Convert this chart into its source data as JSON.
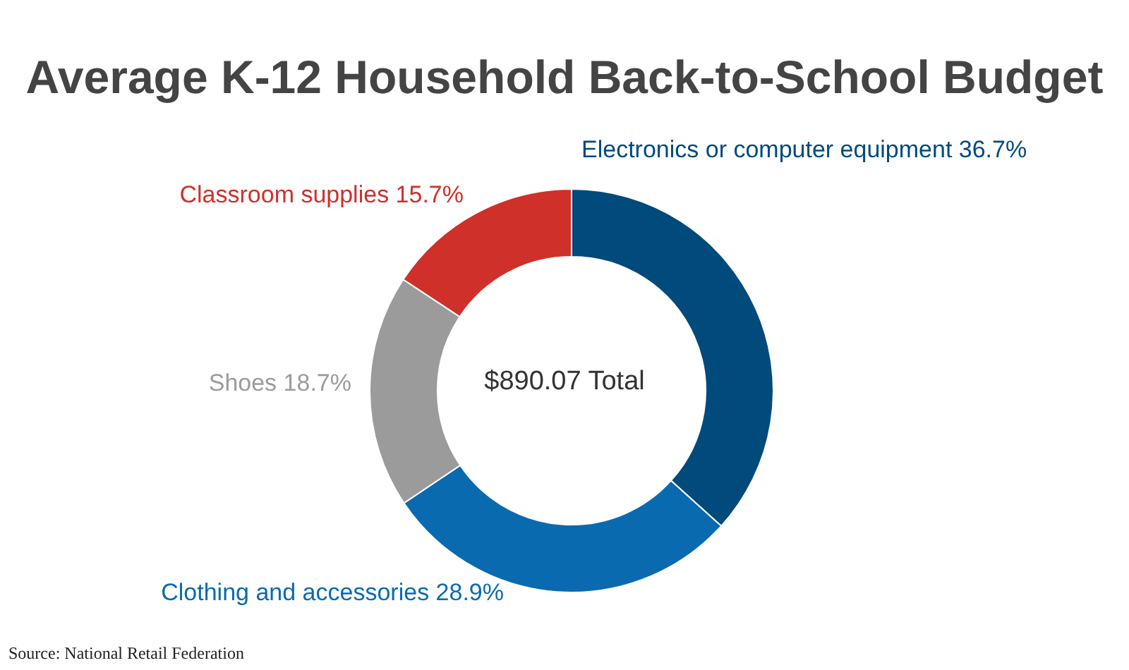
{
  "chart_data": {
    "type": "donut",
    "title": "Average K-12 Household Back-to-School Budget",
    "categories": [
      "Electronics or computer equipment",
      "Clothing and accessories",
      "Shoes",
      "Classroom supplies"
    ],
    "values": [
      36.7,
      28.9,
      18.7,
      15.7
    ],
    "value_labels": [
      "36.7%",
      "28.9%",
      "18.7%",
      "15.7%"
    ],
    "colors": [
      "#004a7c",
      "#0a6ab0",
      "#9b9b9b",
      "#d0302a"
    ],
    "annotations": [
      "$890.07 Total",
      "Source: National Retail Federation"
    ],
    "legend": false
  }
}
